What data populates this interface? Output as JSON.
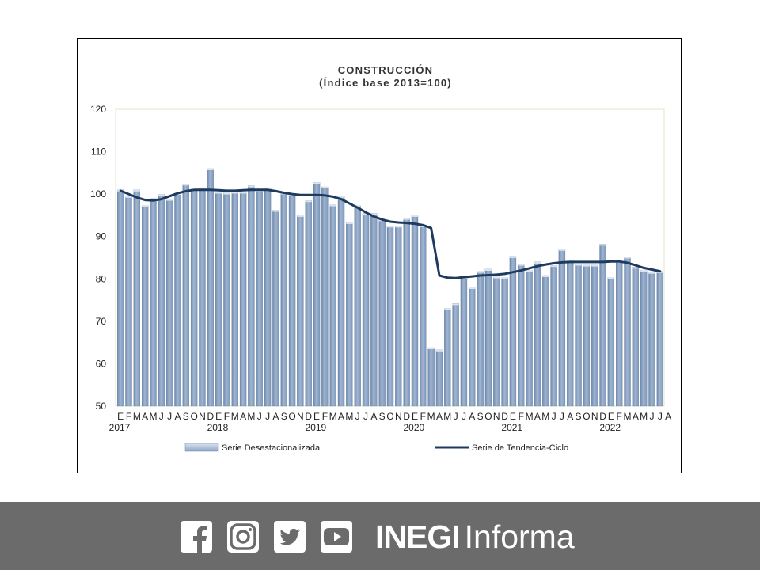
{
  "chart_data": {
    "type": "bar",
    "title": "CONSTRUCCIÓN",
    "subtitle": "(Índice base 2013=100)",
    "ylim": [
      50,
      120
    ],
    "yticks": [
      50,
      60,
      70,
      80,
      90,
      100,
      110,
      120
    ],
    "grid": false,
    "legend_position": "bottom",
    "month_labels": [
      "E",
      "F",
      "M",
      "A",
      "M",
      "J",
      "J",
      "A",
      "S",
      "O",
      "N",
      "D",
      "E",
      "F",
      "M",
      "A",
      "M",
      "J",
      "J",
      "A",
      "S",
      "O",
      "N",
      "D",
      "E",
      "F",
      "M",
      "A",
      "M",
      "J",
      "J",
      "A",
      "S",
      "O",
      "N",
      "D",
      "E",
      "F",
      "M",
      "A",
      "M",
      "J",
      "J",
      "A",
      "S",
      "O",
      "N",
      "D",
      "E",
      "F",
      "M",
      "A",
      "M",
      "J",
      "J",
      "A",
      "S",
      "O",
      "N",
      "D",
      "E",
      "F",
      "M",
      "A",
      "M",
      "J",
      "J",
      "A"
    ],
    "year_labels": [
      {
        "label": "2017",
        "index": 0
      },
      {
        "label": "2018",
        "index": 12
      },
      {
        "label": "2019",
        "index": 24
      },
      {
        "label": "2020",
        "index": 36
      },
      {
        "label": "2021",
        "index": 48
      },
      {
        "label": "2022",
        "index": 60
      }
    ],
    "series": [
      {
        "name": "Serie Desestacionalizada",
        "kind": "bar",
        "color": "#8ea6c6",
        "values": [
          101.0,
          99.5,
          101.0,
          97.3,
          99.0,
          100.0,
          98.8,
          100.2,
          102.4,
          101.2,
          101.5,
          106.0,
          100.5,
          100.3,
          100.5,
          100.5,
          102.0,
          101.0,
          101.5,
          96.2,
          100.3,
          100.0,
          95.0,
          98.5,
          102.8,
          101.7,
          97.5,
          99.5,
          93.3,
          97.3,
          95.5,
          95.5,
          94.0,
          92.5,
          92.5,
          94.3,
          95.0,
          92.6,
          63.8,
          63.3,
          73.0,
          74.2,
          80.3,
          78.0,
          81.8,
          82.3,
          80.5,
          80.3,
          85.3,
          83.5,
          82.0,
          84.0,
          80.8,
          83.2,
          87.0,
          84.5,
          83.5,
          83.3,
          83.3,
          88.2,
          80.3,
          84.2,
          85.2,
          82.8,
          82.0,
          81.6,
          81.8
        ]
      },
      {
        "name": "Serie de Tendencia-Ciclo",
        "kind": "line",
        "color": "#1f3a5f",
        "values": [
          100.8,
          100.0,
          99.2,
          98.6,
          98.5,
          98.8,
          99.5,
          100.2,
          100.7,
          101.0,
          101.0,
          101.0,
          100.9,
          100.8,
          100.8,
          100.9,
          101.0,
          101.0,
          101.0,
          100.7,
          100.3,
          100.0,
          99.8,
          99.8,
          99.8,
          99.7,
          99.4,
          98.8,
          97.8,
          96.8,
          95.7,
          94.7,
          94.0,
          93.5,
          93.3,
          93.2,
          93.0,
          92.7,
          92.0,
          80.8,
          80.3,
          80.2,
          80.4,
          80.6,
          80.8,
          80.9,
          81.0,
          81.2,
          81.6,
          82.0,
          82.5,
          83.0,
          83.4,
          83.7,
          83.9,
          84.0,
          84.0,
          84.0,
          84.0,
          84.0,
          84.1,
          84.1,
          83.8,
          83.2,
          82.6,
          82.2,
          81.8
        ]
      }
    ]
  },
  "footer": {
    "brand_bold": "INEGI",
    "brand_light": "Informa",
    "social_icons": [
      "facebook-icon",
      "instagram-icon",
      "twitter-icon",
      "youtube-icon"
    ]
  }
}
